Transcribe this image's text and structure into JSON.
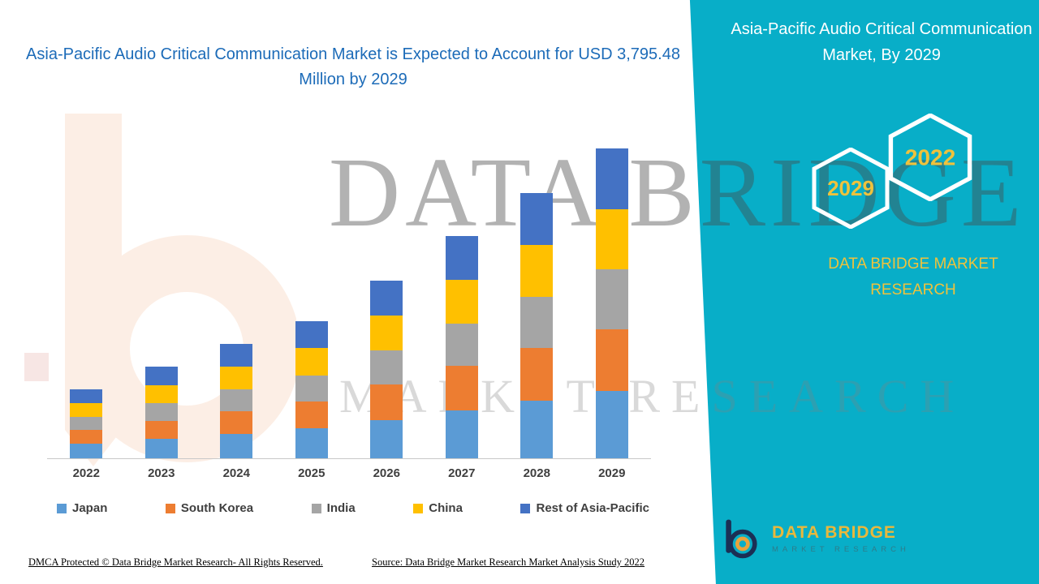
{
  "page": {
    "left_title": "Asia-Pacific Audio Critical Communication Market is Expected to Account for USD 3,795.48 Million by 2029",
    "right_title": "Asia-Pacific Audio Critical Communication Market, By 2029",
    "brand_text": "DATA BRIDGE MARKET RESEARCH",
    "watermark_line1": "DATA BRIDGE",
    "watermark_line2": "MARKET RESEARCH",
    "footer_left": "DMCA Protected © Data Bridge Market Research- All Rights Reserved.",
    "footer_source": "Source: Data Bridge Market Research Market Analysis Study 2022",
    "hexagons": {
      "front_year": "2029",
      "back_year": "2022"
    },
    "logo": {
      "name": "DATA BRIDGE",
      "subtitle": "MARKET RESEARCH"
    }
  },
  "colors": {
    "teal_panel": "#08AEC8",
    "title_blue": "#1C6BB8",
    "gold": "#EFC23C",
    "axis_text": "#3F3F3F"
  },
  "chart_data": {
    "type": "bar",
    "stacked": true,
    "title": "Asia-Pacific Audio Critical Communication Market is Expected to Account for USD 3,795.48 Million by 2029",
    "unit": "USD Million",
    "categories": [
      "2022",
      "2023",
      "2024",
      "2025",
      "2026",
      "2027",
      "2028",
      "2029"
    ],
    "series": [
      {
        "name": "Japan",
        "color": "#5B9BD5",
        "values": [
          180,
          240,
          300,
          365,
          470,
          590,
          705,
          820
        ]
      },
      {
        "name": "South Korea",
        "color": "#ED7D31",
        "values": [
          168,
          222,
          278,
          332,
          432,
          540,
          648,
          760
        ]
      },
      {
        "name": "India",
        "color": "#A5A5A5",
        "values": [
          160,
          214,
          268,
          320,
          415,
          520,
          622,
          740
        ]
      },
      {
        "name": "China",
        "color": "#FFC000",
        "values": [
          168,
          223,
          277,
          330,
          428,
          538,
          635,
          735
        ]
      },
      {
        "name": "Rest of Asia-Pacific",
        "color": "#4472C4",
        "values": [
          170,
          223,
          277,
          331,
          430,
          533,
          638,
          740.48
        ]
      }
    ],
    "totals": [
      846,
      1122,
      1400,
      1678,
      2175,
      2721,
      3248,
      3795.48
    ],
    "ylim": [
      0,
      4000
    ],
    "grid": false,
    "y_axis_visible": false,
    "legend_position": "bottom"
  }
}
